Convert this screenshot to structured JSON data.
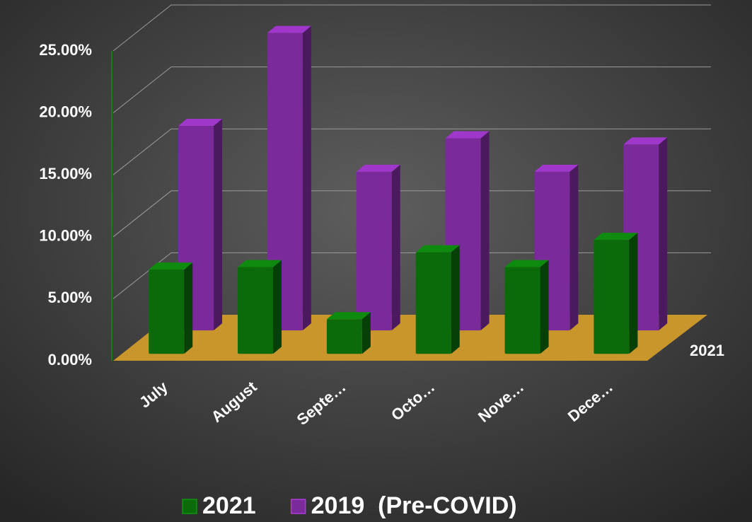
{
  "chart_data": {
    "type": "bar3d",
    "categories": [
      "July",
      "August",
      "Septe…",
      "Octo…",
      "Nove…",
      "Dece…"
    ],
    "series": [
      {
        "name": "2021",
        "color": "#0b6b0b",
        "values": [
          6.8,
          7.0,
          2.8,
          8.2,
          7.0,
          9.2
        ]
      },
      {
        "name": "2019  (Pre-COVID)",
        "color": "#7b2a9c",
        "values": [
          16.5,
          24.0,
          12.8,
          15.5,
          12.8,
          15.0
        ]
      }
    ],
    "ylim": [
      0,
      25
    ],
    "yticks": [
      {
        "value": 0,
        "label": "0.00%"
      },
      {
        "value": 5,
        "label": "5.00%"
      },
      {
        "value": 10,
        "label": "10.00%"
      },
      {
        "value": 15,
        "label": "15.00%"
      },
      {
        "value": 20,
        "label": "20.00%"
      },
      {
        "value": 25,
        "label": "25.00%"
      }
    ],
    "grid": true,
    "legend": "bottom"
  }
}
